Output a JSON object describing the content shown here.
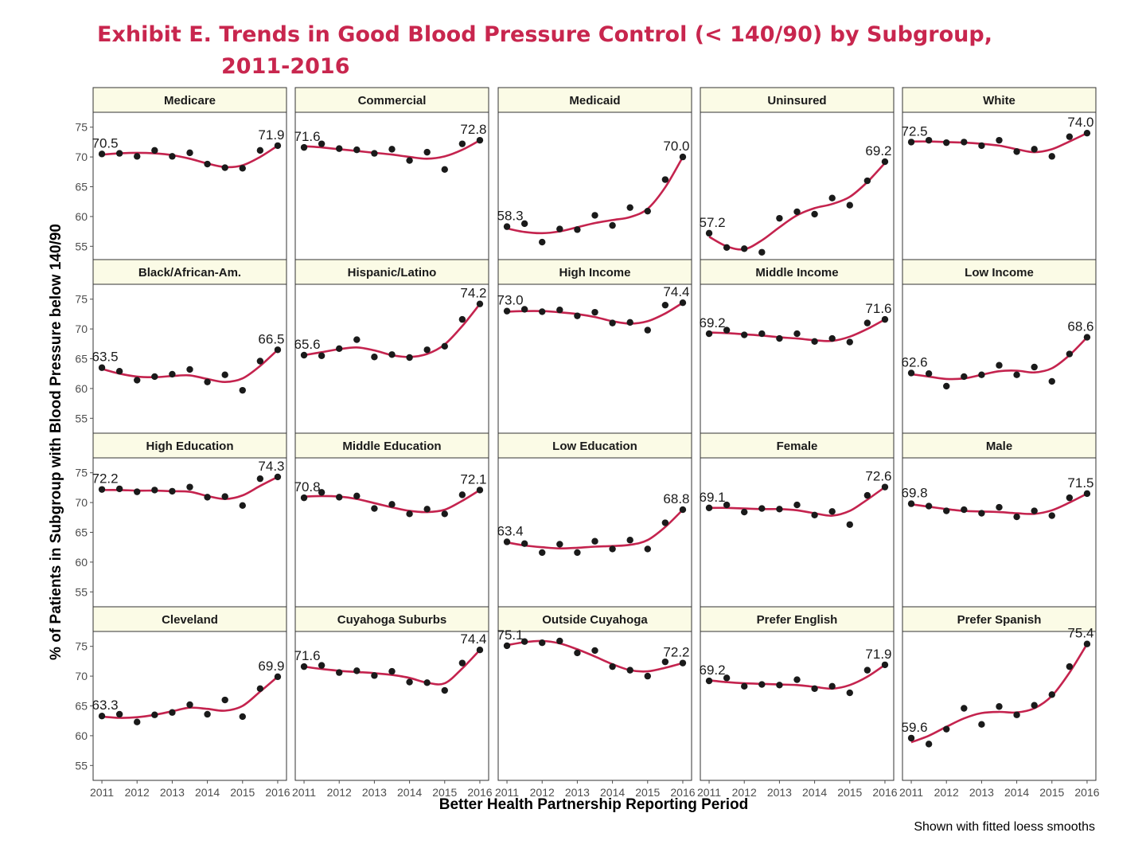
{
  "title": {
    "line1": "Exhibit E. Trends in Good Blood Pressure Control (< 140/90) by Subgroup,",
    "line2": "2011-2016"
  },
  "caption": "Shown with fitted loess smooths",
  "colors": {
    "title": "#c8264e",
    "smooth": "#c4234e",
    "point": "#1a1a1a",
    "strip": "#fbfbe6"
  },
  "chart_data": {
    "type": "scatter",
    "smooth": "loess",
    "xlabel": "Better Health Partnership Reporting Period",
    "ylabel": "% of Patients in Subgroup with Blood Pressure below 140/90",
    "x_ticks": [
      "2011",
      "2012",
      "2013",
      "2014",
      "2015",
      "2016"
    ],
    "y_ticks": [
      55,
      60,
      65,
      70,
      75
    ],
    "ylim": [
      52.5,
      77.5
    ],
    "xlim": [
      2010.75,
      2016.25
    ],
    "x": [
      2011.0,
      2011.5,
      2012.0,
      2012.5,
      2013.0,
      2013.5,
      2014.0,
      2014.5,
      2015.0,
      2015.5,
      2016.0
    ],
    "grid": true,
    "panels": [
      {
        "name": "Medicare",
        "first_label": "70.5",
        "last_label": "71.9",
        "values": [
          70.5,
          70.6,
          70.1,
          71.1,
          70.1,
          70.7,
          68.8,
          68.2,
          68.1,
          71.1,
          71.9
        ],
        "smooth": [
          70.4,
          70.6,
          70.7,
          70.6,
          70.3,
          69.7,
          68.9,
          68.3,
          68.6,
          70.0,
          71.9
        ]
      },
      {
        "name": "Commercial",
        "first_label": "71.6",
        "last_label": "72.8",
        "values": [
          71.6,
          72.2,
          71.4,
          71.2,
          70.6,
          71.3,
          69.4,
          70.8,
          67.9,
          72.2,
          72.8
        ],
        "smooth": [
          71.8,
          71.6,
          71.3,
          71.0,
          70.7,
          70.4,
          70.0,
          69.7,
          70.1,
          71.2,
          72.8
        ]
      },
      {
        "name": "Medicaid",
        "first_label": "58.3",
        "last_label": "70.0",
        "values": [
          58.3,
          58.8,
          55.7,
          57.9,
          57.8,
          60.2,
          58.5,
          61.5,
          60.9,
          66.2,
          70.0
        ],
        "smooth": [
          58.0,
          57.4,
          57.2,
          57.5,
          58.2,
          58.9,
          59.4,
          59.9,
          61.3,
          64.9,
          70.0
        ]
      },
      {
        "name": "Uninsured",
        "first_label": "57.2",
        "last_label": "69.2",
        "values": [
          57.2,
          54.8,
          54.6,
          54.0,
          59.7,
          60.8,
          60.4,
          63.1,
          61.9,
          66.0,
          69.2
        ],
        "smooth": [
          56.6,
          55.0,
          54.5,
          56.0,
          58.2,
          60.2,
          61.4,
          62.1,
          63.3,
          65.8,
          69.0
        ]
      },
      {
        "name": "White",
        "first_label": "72.5",
        "last_label": "74.0",
        "values": [
          72.5,
          72.8,
          72.4,
          72.5,
          71.9,
          72.8,
          70.9,
          71.3,
          70.1,
          73.4,
          74.0
        ],
        "smooth": [
          72.6,
          72.6,
          72.5,
          72.4,
          72.2,
          71.9,
          71.3,
          70.8,
          71.3,
          72.6,
          74.0
        ]
      },
      {
        "name": "Black/African-Am.",
        "first_label": "63.5",
        "last_label": "66.5",
        "values": [
          63.5,
          62.9,
          61.4,
          62.0,
          62.4,
          63.2,
          61.1,
          62.3,
          59.7,
          64.6,
          66.5
        ],
        "smooth": [
          63.3,
          62.5,
          62.0,
          61.9,
          62.1,
          62.2,
          61.6,
          61.1,
          61.7,
          63.8,
          66.5
        ]
      },
      {
        "name": "Hispanic/Latino",
        "first_label": "65.6",
        "last_label": "74.2",
        "values": [
          65.6,
          65.5,
          66.7,
          68.2,
          65.3,
          65.7,
          65.2,
          66.5,
          67.1,
          71.6,
          74.2
        ],
        "smooth": [
          65.6,
          66.1,
          66.6,
          66.9,
          66.4,
          65.6,
          65.3,
          65.8,
          67.4,
          70.5,
          74.2
        ]
      },
      {
        "name": "High Income",
        "first_label": "73.0",
        "last_label": "74.4",
        "values": [
          73.0,
          73.3,
          72.9,
          73.2,
          72.2,
          72.8,
          71.0,
          71.1,
          69.8,
          74.0,
          74.4
        ],
        "smooth": [
          72.9,
          73.0,
          73.0,
          72.8,
          72.5,
          72.0,
          71.3,
          70.9,
          71.3,
          72.6,
          74.4
        ]
      },
      {
        "name": "Middle Income",
        "first_label": "69.2",
        "last_label": "71.6",
        "values": [
          69.2,
          69.8,
          69.0,
          69.2,
          68.4,
          69.2,
          67.9,
          68.4,
          67.8,
          71.0,
          71.6
        ],
        "smooth": [
          69.4,
          69.3,
          69.1,
          68.9,
          68.6,
          68.4,
          68.1,
          68.0,
          68.7,
          70.0,
          71.6
        ]
      },
      {
        "name": "Low Income",
        "first_label": "62.6",
        "last_label": "68.6",
        "values": [
          62.6,
          62.5,
          60.4,
          62.0,
          62.3,
          63.9,
          62.3,
          63.6,
          61.2,
          65.8,
          68.6
        ],
        "smooth": [
          62.4,
          62.0,
          61.6,
          61.7,
          62.3,
          62.9,
          63.0,
          62.7,
          63.4,
          65.6,
          68.6
        ]
      },
      {
        "name": "High Education",
        "first_label": "72.2",
        "last_label": "74.3",
        "values": [
          72.2,
          72.3,
          71.8,
          72.1,
          71.9,
          72.6,
          70.9,
          71.0,
          69.5,
          74.0,
          74.3
        ],
        "smooth": [
          72.1,
          72.1,
          72.0,
          72.0,
          71.9,
          71.8,
          71.1,
          70.6,
          71.2,
          72.8,
          74.3
        ]
      },
      {
        "name": "Middle Education",
        "first_label": "70.8",
        "last_label": "72.1",
        "values": [
          70.8,
          71.7,
          70.9,
          71.1,
          69.0,
          69.7,
          68.1,
          68.9,
          68.1,
          71.3,
          72.1
        ],
        "smooth": [
          71.0,
          71.1,
          71.0,
          70.6,
          69.9,
          69.2,
          68.6,
          68.4,
          68.8,
          70.3,
          72.1
        ]
      },
      {
        "name": "Low Education",
        "first_label": "63.4",
        "last_label": "68.8",
        "values": [
          63.4,
          63.1,
          61.6,
          63.0,
          61.6,
          63.5,
          62.2,
          63.7,
          62.2,
          66.6,
          68.8
        ],
        "smooth": [
          63.3,
          62.8,
          62.5,
          62.3,
          62.4,
          62.6,
          62.7,
          62.9,
          63.7,
          65.9,
          68.8
        ]
      },
      {
        "name": "Female",
        "first_label": "69.1",
        "last_label": "72.6",
        "values": [
          69.1,
          69.6,
          68.4,
          69.0,
          68.9,
          69.6,
          67.9,
          68.5,
          66.3,
          71.2,
          72.6
        ],
        "smooth": [
          69.1,
          69.1,
          69.0,
          68.9,
          68.9,
          68.7,
          68.2,
          67.8,
          68.6,
          70.5,
          72.6
        ]
      },
      {
        "name": "Male",
        "first_label": "69.8",
        "last_label": "71.5",
        "values": [
          69.8,
          69.4,
          68.6,
          68.8,
          68.2,
          69.2,
          67.6,
          68.6,
          67.8,
          70.8,
          71.5
        ],
        "smooth": [
          69.7,
          69.3,
          68.9,
          68.6,
          68.5,
          68.4,
          68.2,
          68.1,
          68.7,
          70.0,
          71.5
        ]
      },
      {
        "name": "Cleveland",
        "first_label": "63.3",
        "last_label": "69.9",
        "values": [
          63.3,
          63.6,
          62.3,
          63.5,
          63.9,
          65.2,
          63.6,
          66.0,
          63.2,
          67.9,
          69.9
        ],
        "smooth": [
          63.2,
          63.0,
          63.1,
          63.5,
          64.1,
          64.7,
          64.5,
          64.2,
          65.0,
          67.4,
          69.9
        ]
      },
      {
        "name": "Cuyahoga Suburbs",
        "first_label": "71.6",
        "last_label": "74.4",
        "values": [
          71.6,
          71.8,
          70.6,
          70.9,
          70.1,
          70.8,
          69.0,
          68.9,
          67.6,
          72.2,
          74.4
        ],
        "smooth": [
          71.6,
          71.2,
          70.9,
          70.7,
          70.5,
          70.2,
          69.7,
          68.9,
          68.8,
          71.3,
          74.4
        ]
      },
      {
        "name": "Outside Cuyahoga",
        "first_label": "75.1",
        "last_label": "72.2",
        "values": [
          75.1,
          75.8,
          75.6,
          75.9,
          73.9,
          74.3,
          71.6,
          71.0,
          70.0,
          72.4,
          72.2
        ],
        "smooth": [
          75.2,
          75.7,
          75.9,
          75.5,
          74.5,
          73.3,
          72.0,
          71.0,
          70.8,
          71.4,
          72.2
        ]
      },
      {
        "name": "Prefer English",
        "first_label": "69.2",
        "last_label": "71.9",
        "values": [
          69.2,
          69.7,
          68.3,
          68.6,
          68.5,
          69.4,
          67.9,
          68.3,
          67.2,
          71.0,
          71.9
        ],
        "smooth": [
          69.3,
          69.0,
          68.8,
          68.7,
          68.6,
          68.5,
          68.2,
          67.9,
          68.5,
          69.9,
          71.9
        ]
      },
      {
        "name": "Prefer Spanish",
        "first_label": "59.6",
        "last_label": "75.4",
        "values": [
          59.6,
          58.6,
          61.1,
          64.6,
          61.9,
          64.9,
          63.5,
          65.1,
          66.9,
          71.6,
          75.4
        ],
        "smooth": [
          58.9,
          60.0,
          61.5,
          62.9,
          63.8,
          64.0,
          63.9,
          64.6,
          66.7,
          70.6,
          75.4
        ]
      }
    ]
  }
}
